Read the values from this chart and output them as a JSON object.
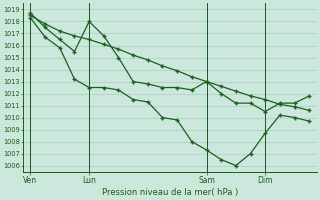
{
  "title": "Pression niveau de la mer( hPa )",
  "bg_color": "#cce8dc",
  "grid_color": "#aacfbe",
  "line_color": "#1a6020",
  "text_color": "#1a5c1a",
  "ylim": [
    1005.5,
    1019.5
  ],
  "yticks": [
    1006,
    1007,
    1008,
    1009,
    1010,
    1011,
    1012,
    1013,
    1014,
    1015,
    1016,
    1017,
    1018,
    1019
  ],
  "xtick_labels": [
    "Ven",
    "Lun",
    "Sam",
    "Dim"
  ],
  "xtick_positions": [
    0,
    4,
    12,
    16
  ],
  "xlim": [
    -0.5,
    19.5
  ],
  "line_straight_x": [
    0,
    1,
    2,
    3,
    4,
    5,
    6,
    7,
    8,
    9,
    10,
    11,
    12,
    13,
    14,
    15,
    16,
    17,
    18,
    19
  ],
  "line_straight_y": [
    1018.5,
    1017.8,
    1017.2,
    1016.8,
    1016.5,
    1016.1,
    1015.7,
    1015.2,
    1014.8,
    1014.3,
    1013.9,
    1013.4,
    1013.0,
    1012.6,
    1012.2,
    1011.8,
    1011.5,
    1011.1,
    1010.9,
    1010.6
  ],
  "line_mid_x": [
    0,
    1,
    2,
    3,
    4,
    5,
    6,
    7,
    8,
    9,
    10,
    11,
    12,
    13,
    14,
    15,
    16,
    17,
    18,
    19
  ],
  "line_mid_y": [
    1018.7,
    1017.5,
    1016.5,
    1015.5,
    1018.0,
    1016.8,
    1015.0,
    1013.0,
    1012.8,
    1012.5,
    1012.5,
    1012.3,
    1013.0,
    1012.0,
    1011.2,
    1011.2,
    1010.5,
    1011.2,
    1011.2,
    1011.8
  ],
  "line_low_x": [
    0,
    1,
    2,
    3,
    4,
    5,
    6,
    7,
    8,
    9,
    10,
    11,
    12,
    13,
    14,
    15,
    16,
    17,
    18,
    19
  ],
  "line_low_y": [
    1018.3,
    1016.7,
    1015.8,
    1013.2,
    1012.5,
    1012.5,
    1012.3,
    1011.5,
    1011.3,
    1010.0,
    1009.8,
    1008.0,
    1007.3,
    1006.5,
    1006.0,
    1007.0,
    1008.7,
    1010.2,
    1010.0,
    1009.7
  ]
}
